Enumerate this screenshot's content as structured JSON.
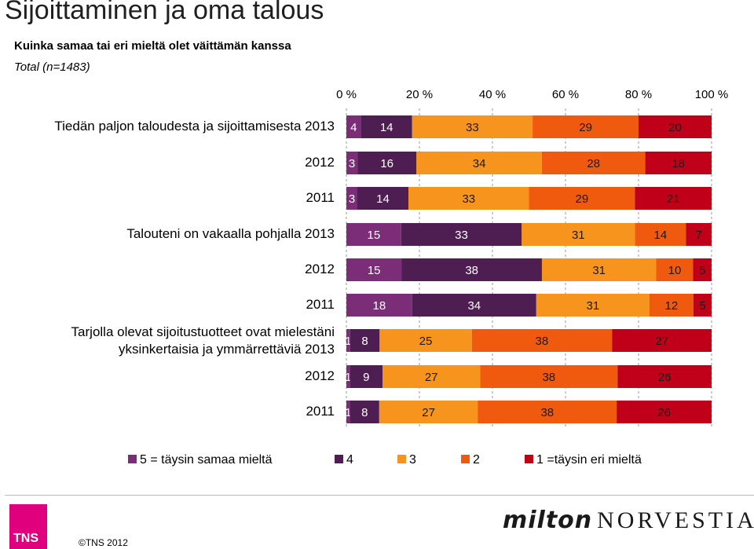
{
  "page": {
    "title": "Sijoittaminen ja oma talous",
    "subtitle": "Kuinka samaa tai eri mieltä olet väittämän kanssa",
    "total": "Total (n=1483)",
    "copyright": "©TNS 2012",
    "logo_text": "TNS",
    "brand_milton": "milton",
    "brand_norvestia": "NORVESTIA"
  },
  "row_labels": [
    "Tiedän paljon taloudesta ja sijoittamisesta 2013",
    "2012",
    "2011",
    "Talouteni on vakaalla pohjalla 2013",
    "2012",
    "2011",
    "Tarjolla olevat sijoitustuotteet ovat mielestäni",
    "yksinkertaisia ja ymmärrettäviä 2013",
    "2012",
    "2011"
  ],
  "colors": [
    "#7b2d78",
    "#4e1e52",
    "#f7941d",
    "#f05a0e",
    "#c00018"
  ],
  "chart_data": {
    "type": "bar",
    "orientation": "horizontal",
    "stacked": "percent",
    "title": "Kuinka samaa tai eri mieltä olet väittämän kanssa",
    "categories": [
      "Tiedän paljon taloudesta ja sijoittamisesta 2013",
      "2012",
      "2011",
      "Talouteni on vakaalla pohjalla 2013",
      "2012",
      "2011",
      "Tarjolla olevat sijoitustuotteet ovat mielestäni yksinkertaisia ja ymmärrettäviä 2013",
      "2012",
      "2011"
    ],
    "series": [
      {
        "name": "5 = täysin samaa mieltä",
        "values": [
          4,
          3,
          3,
          15,
          15,
          18,
          1,
          1,
          1
        ]
      },
      {
        "name": "4",
        "values": [
          14,
          16,
          14,
          33,
          38,
          34,
          8,
          9,
          8
        ]
      },
      {
        "name": "3",
        "values": [
          33,
          34,
          33,
          31,
          31,
          31,
          25,
          27,
          27
        ]
      },
      {
        "name": "2",
        "values": [
          29,
          28,
          29,
          14,
          10,
          12,
          38,
          38,
          38
        ]
      },
      {
        "name": "1 =täysin eri mieltä",
        "values": [
          20,
          18,
          21,
          7,
          5,
          5,
          27,
          26,
          26
        ]
      }
    ],
    "x_ticks": [
      "0 %",
      "20 %",
      "40 %",
      "60 %",
      "80 %",
      "100 %"
    ],
    "xlim": [
      0,
      100
    ],
    "legend_position": "bottom"
  }
}
